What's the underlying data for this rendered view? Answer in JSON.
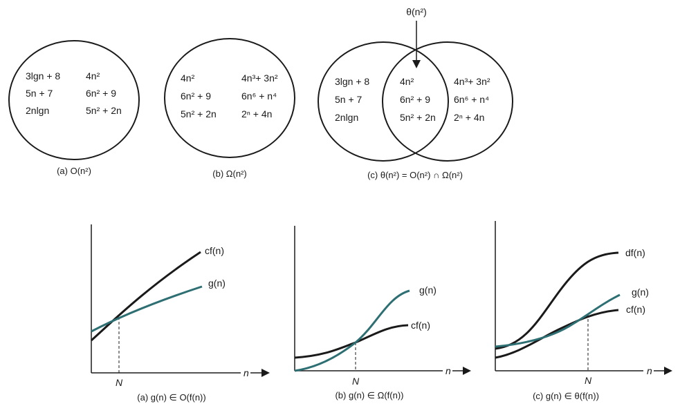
{
  "colors": {
    "teal": "#2d6f73",
    "dark": "#1a1a1a"
  },
  "venn": {
    "a": {
      "items": [
        "3lgn + 8",
        "4n²",
        "5n + 7",
        "6n² + 9",
        "2nlgn",
        "5n² + 2n"
      ],
      "caption": "(a) O(n²)"
    },
    "b": {
      "items": [
        "4n²",
        "4n³+ 3n²",
        "6n² + 9",
        "6n⁶ + n⁴",
        "5n² + 2n",
        "2ⁿ + 4n"
      ],
      "caption": "(b) Ω(n²)"
    },
    "c": {
      "left_items": [
        "3lgn + 8",
        "5n + 7",
        "2nlgn"
      ],
      "middle_items": [
        "4n²",
        "6n² + 9",
        "5n² + 2n"
      ],
      "right_items": [
        "4n³+ 3n²",
        "6n⁶ + n⁴",
        "2ⁿ + 4n"
      ],
      "arrow_label": "θ(n²)",
      "caption": "(c) θ(n²) = O(n²)  ∩  Ω(n²)"
    }
  },
  "plots": [
    {
      "curves": [
        {
          "name": "cf(n)",
          "color": "dark"
        },
        {
          "name": "g(n)",
          "color": "teal"
        }
      ],
      "x_axis_label": "n",
      "tick_label": "N",
      "caption": "(a) g(n) ∈  O(f(n))"
    },
    {
      "curves": [
        {
          "name": "g(n)",
          "color": "teal"
        },
        {
          "name": "cf(n)",
          "color": "dark"
        }
      ],
      "x_axis_label": "n",
      "tick_label": "N",
      "caption": "(b) g(n) ∈  Ω(f(n))"
    },
    {
      "curves": [
        {
          "name": "df(n)",
          "color": "dark"
        },
        {
          "name": "g(n)",
          "color": "teal"
        },
        {
          "name": "cf(n)",
          "color": "dark"
        }
      ],
      "x_axis_label": "n",
      "tick_label": "N",
      "caption": "(c) g(n) ∈  θ(f(n))"
    }
  ]
}
